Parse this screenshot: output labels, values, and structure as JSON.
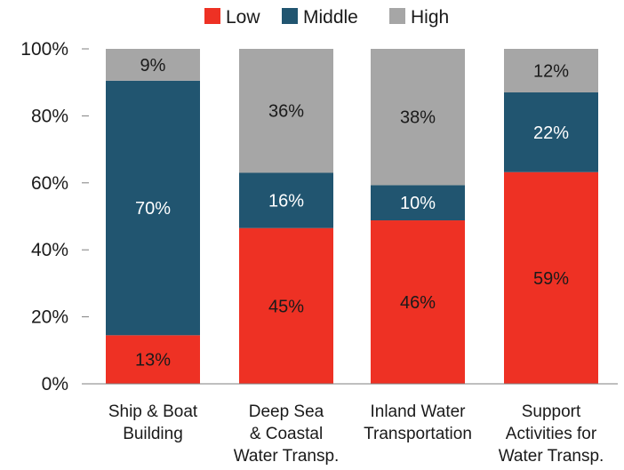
{
  "chart_data": {
    "type": "bar",
    "stacked": true,
    "categories": [
      [
        "Ship & Boat",
        "Building"
      ],
      [
        "Deep Sea",
        "& Coastal",
        "Water Transp."
      ],
      [
        "Inland Water",
        "Transportation"
      ],
      [
        "Support",
        "Activities for",
        "Water Transp."
      ]
    ],
    "series": [
      {
        "name": "Low",
        "color": "#ee3124",
        "values": [
          13,
          45,
          46,
          59
        ],
        "labels": [
          "13%",
          "45%",
          "46%",
          "59%"
        ],
        "label_color": "#1a1a1a"
      },
      {
        "name": "Middle",
        "color": "#215570",
        "values": [
          70,
          16,
          10,
          22
        ],
        "labels": [
          "70%",
          "16%",
          "10%",
          "22%"
        ],
        "label_color": "#ffffff"
      },
      {
        "name": "High",
        "color": "#a6a6a6",
        "values": [
          9,
          36,
          38,
          12
        ],
        "labels": [
          "9%",
          "36%",
          "38%",
          "12%"
        ],
        "label_color": "#1a1a1a"
      }
    ],
    "stack_tops": [
      [
        14.5,
        90.5,
        100
      ],
      [
        46.5,
        63,
        100
      ],
      [
        48.8,
        59.3,
        100
      ],
      [
        63.2,
        87,
        100
      ]
    ],
    "yticks": [
      "0%",
      "20%",
      "40%",
      "60%",
      "80%",
      "100%"
    ],
    "ytick_values": [
      0,
      20,
      40,
      60,
      80,
      100
    ],
    "ylim": [
      0,
      100
    ],
    "grid": false,
    "legend_position": "top-center"
  }
}
